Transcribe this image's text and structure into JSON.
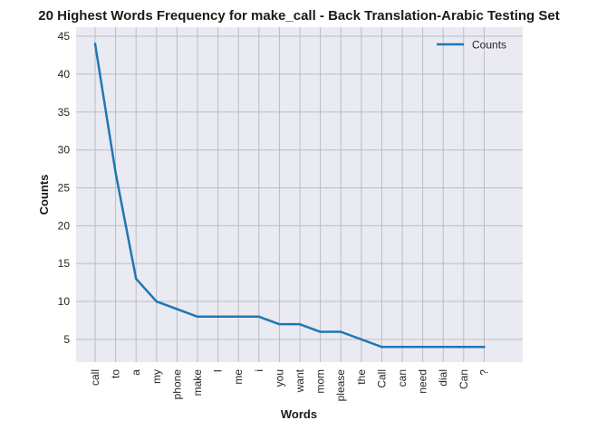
{
  "chart_data": {
    "type": "line",
    "title": "20 Highest Words Frequency for make_call - Back Translation-Arabic Testing Set",
    "xlabel": "Words",
    "ylabel": "Counts",
    "categories": [
      "call",
      "to",
      "a",
      "my",
      "phone",
      "make",
      "I",
      "me",
      "i",
      "you",
      "want",
      "mom",
      "please",
      "the",
      "Call",
      "can",
      "need",
      "dial",
      "Can",
      "?"
    ],
    "series": [
      {
        "name": "Counts",
        "values": [
          44,
          27,
          13,
          10,
          9,
          8,
          8,
          8,
          8,
          7,
          7,
          6,
          6,
          5,
          4,
          4,
          4,
          4,
          4,
          4
        ]
      }
    ],
    "yticks": [
      5,
      10,
      15,
      20,
      25,
      30,
      35,
      40,
      45
    ],
    "ylim": [
      2,
      46.2
    ],
    "grid": true,
    "legend": "top-right",
    "colors": {
      "line": "#1f77b4",
      "plot_bg": "#eaeaf2",
      "grid": "#bcbcc4"
    }
  }
}
